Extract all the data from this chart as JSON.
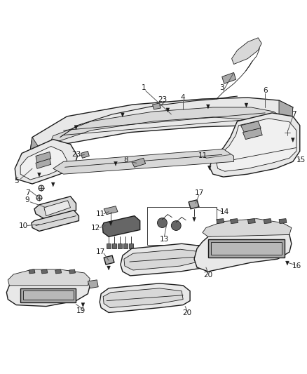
{
  "bg_color": "#ffffff",
  "fig_width": 4.38,
  "fig_height": 5.33,
  "dpi": 100,
  "line_color": "#1a1a1a",
  "label_color": "#1a1a1a",
  "label_fontsize": 7.5,
  "gray_light": "#d8d8d8",
  "gray_med": "#aaaaaa",
  "gray_dark": "#666666",
  "gray_fill": "#e8e8e8"
}
